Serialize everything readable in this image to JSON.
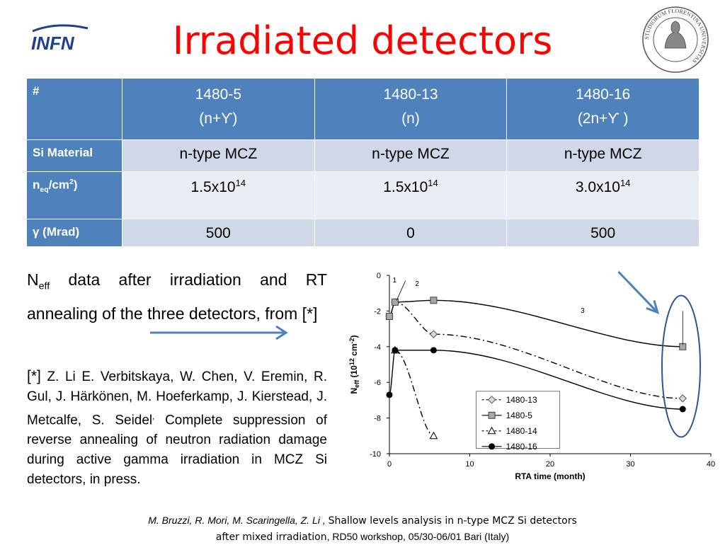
{
  "header": {
    "title": "Irradiated detectors",
    "infn_logo_text": "INFN",
    "seal_text": "STUDIORUM FLORENTINA UNIVERSITAS"
  },
  "table": {
    "corner": "#",
    "columns": [
      {
        "name": "1480-5",
        "type": "(n+ϒ)"
      },
      {
        "name": "1480-13",
        "type": "(n)"
      },
      {
        "name": "1480-16",
        "type": "(2n+ϒ )"
      }
    ],
    "rows": {
      "material": {
        "label": "Si Material",
        "values": [
          "n-type MCZ",
          "n-type MCZ",
          "n-type MCZ"
        ]
      },
      "neq": {
        "label_main": "n",
        "label_sub": "eq",
        "label_mid": "/cm",
        "label_sup": "2",
        "label_end": ")",
        "values": [
          {
            "mantissa": "1.5x10",
            "exp": "14"
          },
          {
            "mantissa": "1.5x10",
            "exp": "14"
          },
          {
            "mantissa": "3.0x10",
            "exp": "14"
          }
        ]
      },
      "gamma": {
        "label": "γ (Mrad)",
        "values": [
          "500",
          "0",
          "500"
        ]
      }
    }
  },
  "description": {
    "neff_main": "N",
    "neff_sub": "eff",
    "text": " data after irradiation and RT annealing of the three detectors, from [*]"
  },
  "reference": {
    "mark": "[*]",
    "authors": " Z. Li E. Verbitskaya, W. Chen, V. Eremin, R. Gul, J. Härkönen, M. Hoeferkamp, J. Kierstead, J. Metcalfe, S. Seidel",
    "sep": ",",
    "title": " Complete suppression of reverse annealing of neutron radiation damage during active gamma irradiation in MCZ Si detectors, in press."
  },
  "chart_data": {
    "type": "line",
    "xlabel": "RTA time (month)",
    "ylabel_main": "N",
    "ylabel_sub": "eff",
    "ylabel_paren": "(10",
    "ylabel_sup1": "12",
    "ylabel_unit": " cm",
    "ylabel_sup2": "-2",
    "ylabel_close": ")",
    "xlim": [
      0,
      40
    ],
    "ylim": [
      -10,
      0
    ],
    "xticks": [
      0,
      10,
      20,
      30,
      40
    ],
    "yticks": [
      0,
      -2,
      -4,
      -6,
      -8,
      -10
    ],
    "legend_position": "bottom-right",
    "series": [
      {
        "name": "1480-13",
        "marker": "diamond",
        "dash": "dashdot",
        "x": [
          0,
          0.7,
          5.5,
          36.5
        ],
        "y": [
          -2.3,
          -1.5,
          -3.3,
          -6.9
        ]
      },
      {
        "name": "1480-5",
        "marker": "square",
        "dash": "solid",
        "x": [
          0,
          0.7,
          5.5,
          36.5
        ],
        "y": [
          -2.3,
          -1.5,
          -1.4,
          -4.0
        ]
      },
      {
        "name": "1480-14",
        "marker": "triangle",
        "dash": "dashdot",
        "x": [
          0.7,
          5.5
        ],
        "y": [
          -4.2,
          -9.0
        ]
      },
      {
        "name": "1480-16",
        "marker": "circle",
        "dash": "solid",
        "x": [
          0,
          0.7,
          5.5,
          36.5
        ],
        "y": [
          -6.7,
          -4.2,
          -4.2,
          -7.5
        ]
      }
    ],
    "annotations": [
      "1",
      "2",
      "3"
    ]
  },
  "footer": {
    "authors": "M. Bruzzi, R. Mori, M. Scaringella,  Z. Li , ",
    "title1": "Shallow levels analysis in n-type  MCZ Si detectors",
    "title2": "after mixed irradiation",
    "venue": ", RD50 workshop, 05/30-06/01 Bari (Italy)"
  },
  "colors": {
    "title": "#ff0000",
    "table_header": "#4f81bd",
    "table_row_a": "#d0d8e8",
    "table_row_b": "#e9edf4",
    "arrow": "#4f81bd",
    "ellipse": "#2f5597",
    "infn_blue": "#1f3f8f"
  }
}
